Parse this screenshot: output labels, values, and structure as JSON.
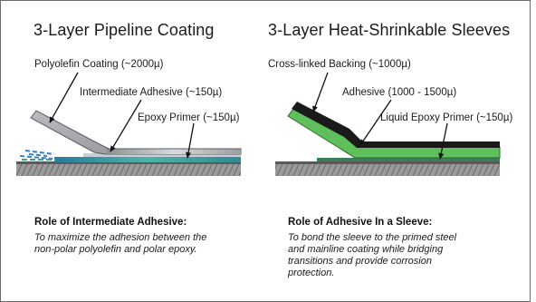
{
  "left": {
    "title": "3-Layer Pipeline Coating",
    "labels": {
      "layer1": "Polyolefin Coating (~2000µ)",
      "layer2": "Intermediate Adhesive (~150µ)",
      "layer3": "Epoxy Primer (~150µ)"
    },
    "role_heading": "Role of Intermediate Adhesive:",
    "role_lines": [
      "To maximize the adhesion between the",
      "non-polar polyolefin and polar epoxy."
    ]
  },
  "right": {
    "title": "3-Layer Heat-Shrinkable Sleeves",
    "labels": {
      "layer1": "Cross-linked Backing (~1000µ)",
      "layer2": "Adhesive (1000 - 1500µ)",
      "layer3": "Liquid Epoxy Primer (~150µ)"
    },
    "role_heading": "Role of Adhesive In a Sleeve:",
    "role_lines": [
      "To bond the sleeve to the primed steel",
      "and mainline coating while bridging",
      "transitions and provide corrosion",
      "protection."
    ]
  },
  "colors": {
    "steel": "#8f8f8f",
    "polyolefin": "#a9abad",
    "epoxy": "#2f8a8f",
    "sleeve_backing": "#1a1a1a",
    "sleeve_adhesive": "#5fbf5a",
    "arrow": "#111111"
  }
}
